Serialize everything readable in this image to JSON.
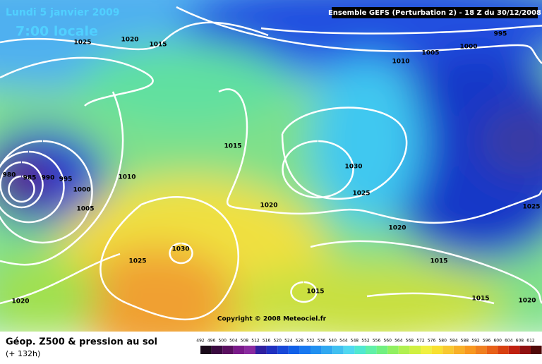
{
  "header": {
    "date": "Lundi 5 janvier 2009",
    "time": "7:00 locale",
    "model": "Ensemble GEFS (Perturbation 2)  -  18 Z du 30/12/2008"
  },
  "isobar_labels": [
    1025,
    1020,
    1015,
    995,
    1000,
    1005,
    1010,
    1015,
    1030,
    1025,
    980,
    985,
    990,
    995,
    1000,
    1005,
    1010,
    1020,
    1025,
    1020,
    1030,
    1025,
    1015,
    1015,
    1015,
    1020,
    1020
  ],
  "copyright": "Copyright © 2008 Meteociel.fr",
  "legend": {
    "title": "Géop. Z500 & pression au sol",
    "subtitle": "(+ 132h)",
    "scale": [
      492,
      496,
      500,
      504,
      508,
      512,
      516,
      520,
      524,
      528,
      532,
      536,
      540,
      544,
      548,
      552,
      556,
      560,
      564,
      568,
      572,
      576,
      580,
      584,
      588,
      592,
      596,
      600,
      604,
      608,
      612
    ]
  }
}
